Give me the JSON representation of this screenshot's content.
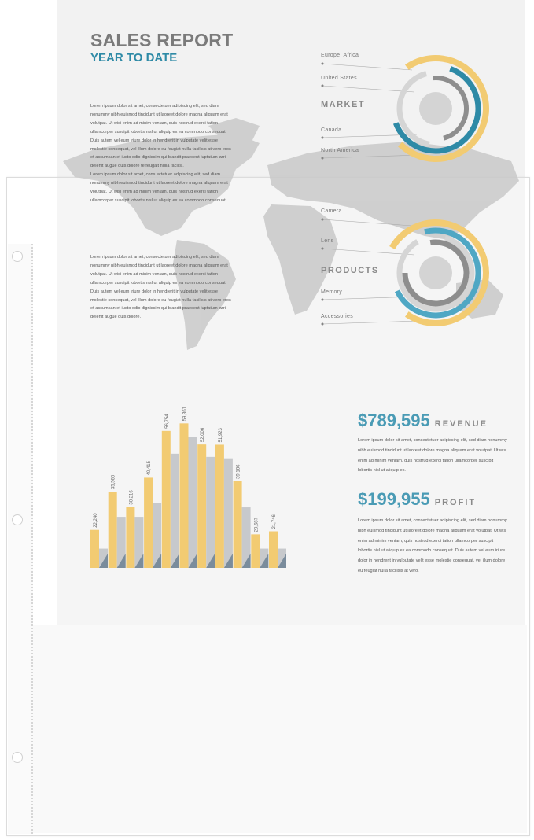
{
  "report": {
    "title": "SALES REPORT",
    "subtitle": "YEAR TO DATE",
    "paragraph_1": "Lorem ipsum dolor sit amet, consectetuer adipiscing elit, sed diam nonummy nibh euismod tincidunt ut laoreet dolore magna aliquam erat volutpat. Ut wisi enim ad minim veniam, quis nostrud exerci tation ullamcorper suscipit lobortis nisl ut aliquip ex ea commodo consequat. Duis autem vel eum iriure dolor in hendrerit in vulputate velit esse molestie consequat, vel illum dolore eu feugiat nulla facilisis at vero eros et accumsan et iusto odio dignissim qui blandit praesent luptatum zzril delenit augue duis dolore te feugait nulla facilisi.",
    "paragraph_1b": "Lorem ipsum dolor sit amet, cons ectetuer adipiscing elit, sed diam nonummy nibh euismod tincidunt ut laoreet dolore magna aliquam erat volutpat. Ut wisi enim ad minim veniam, quis nostrud exerci tation ullamcorper suscipit lobortis nisl ut aliquip ex ea commodo consequat.",
    "paragraph_2": "Lorem ipsum dolor sit amet, consectetuer adipiscing elit, sed diam nonummy nibh euismod tincidunt ut laoreet dolore magna aliquam erat volutpat. Ut wisi enim ad minim veniam, quis nostrud exerci tation ullamcorper suscipit lobortis nisl ut aliquip ex ea commodo consequat. Duis autem vel eum iriure dolor in hendrerit in vulputate velit esse molestie consequat, vel illum dolore eu feugiat nulla facilisis at vero eros et accumsan et iusto odio dignissim qui blandit praesent luptatum zzril delenit augue duis dolore.",
    "market": {
      "heading": "MARKET",
      "labels": [
        "Europe, Africa",
        "United States",
        "Canada",
        "North America"
      ]
    },
    "products": {
      "heading": "PRODUCTS",
      "labels": [
        "Camera",
        "Lens",
        "Memory",
        "Accessories"
      ]
    },
    "revenue": {
      "amount": "$789,595",
      "label": "REVENUE",
      "text": "Lorem ipsum dolor sit amet, consectetuer adipiscing elit, sed diam nonummy nibh euismod tincidunt ut laoreet dolore magna aliquam erat volutpat. Ut wisi enim ad minim veniam, quis nostrud exerci tation ullamcorper suscipit lobortis nisl ut aliquip ex."
    },
    "profit": {
      "amount": "$199,955",
      "label": "PROFIT",
      "text": "Lorem ipsum dolor sit amet, consectetuer adipiscing elit, sed diam nonummy nibh euismod tincidunt ut laoreet dolore magna aliquam erat volutpat. Ut wisi enim ad minim veniam, quis nostrud exerci tation ullamcorper suscipit lobortis nisl ut aliquip ex ea commodo consequat. Duis autem vel eum iriure dolor in hendrerit in vulputate velit esse molestie consequat, vel illum dolore eu feugiat nulla facilisis at vero."
    },
    "colors": {
      "yellow": "#f2cb72",
      "blue": "#2e8aa6",
      "gray": "#c7c9cc",
      "dark_gray": "#8e8e8e",
      "slate": "#7a8c9c"
    }
  },
  "chart_data": {
    "type": "bar",
    "title": "",
    "xlabel": "",
    "ylabel": "",
    "ylim": [
      9000,
      60000
    ],
    "grid": false,
    "series": [
      {
        "values": [
          22240,
          35560,
          30216,
          40415,
          56754,
          59361,
          52006,
          51923,
          39186,
          20687,
          21746
        ],
        "labels": [
          "22,240",
          "35,560",
          "30,216",
          "40,415",
          "56,754",
          "59,361",
          "52,006",
          "51,923",
          "39,186",
          "20,687",
          "21,746"
        ],
        "color": "#f2cb72"
      },
      {
        "values": [
          15700,
          26800,
          26800,
          31700,
          48800,
          54700,
          47700,
          47200,
          30100,
          15700,
          15700
        ],
        "color": "#c7c9cc"
      }
    ]
  }
}
